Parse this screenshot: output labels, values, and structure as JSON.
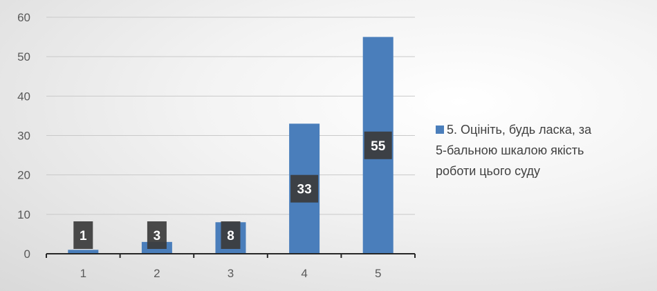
{
  "chart_data": {
    "type": "bar",
    "categories": [
      "1",
      "2",
      "3",
      "4",
      "5"
    ],
    "series": [
      {
        "name": "5. Оцініть, будь ласка, за 5-бальною шкалою якість роботи цього суду",
        "values": [
          1,
          3,
          8,
          33,
          55
        ],
        "color": "#4a7ebb"
      }
    ],
    "data_labels": [
      "1",
      "3",
      "8",
      "33",
      "55"
    ],
    "y_ticks": [
      "0",
      "10",
      "20",
      "30",
      "40",
      "50",
      "60"
    ],
    "ylim": [
      0,
      60
    ],
    "grid": true,
    "legend_position": "right",
    "title": "",
    "xlabel": "",
    "ylabel": ""
  }
}
